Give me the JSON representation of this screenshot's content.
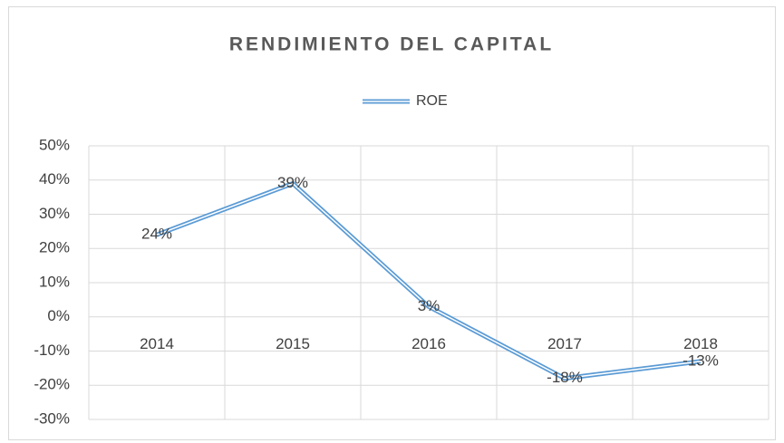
{
  "chart_data": {
    "type": "line",
    "title": "RENDIMIENTO DEL CAPITAL",
    "categories": [
      "2014",
      "2015",
      "2016",
      "2017",
      "2018"
    ],
    "series": [
      {
        "name": "ROE",
        "color": "#5b9bd5",
        "values": [
          24,
          39,
          3,
          -18,
          -13
        ],
        "value_labels": [
          "24%",
          "39%",
          "3%",
          "-18%",
          "-13%"
        ]
      }
    ],
    "ylim": [
      -30,
      50
    ],
    "yticks": [
      {
        "value": -30,
        "label": "-30%"
      },
      {
        "value": -20,
        "label": "-20%"
      },
      {
        "value": -10,
        "label": "-10%"
      },
      {
        "value": 0,
        "label": "0%"
      },
      {
        "value": 10,
        "label": "10%"
      },
      {
        "value": 20,
        "label": "20%"
      },
      {
        "value": 30,
        "label": "30%"
      },
      {
        "value": 40,
        "label": "40%"
      },
      {
        "value": 50,
        "label": "50%"
      }
    ],
    "grid": true,
    "legend": "top"
  }
}
